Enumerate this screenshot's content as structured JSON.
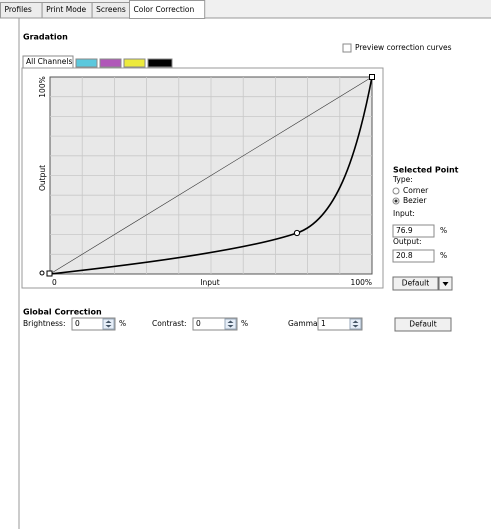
{
  "tabs": [
    "Profiles",
    "Print Mode",
    "Screens",
    "Color Correction"
  ],
  "gradation": {
    "title": "Gradation",
    "preview_label": "Preview correction curves",
    "channel_tab": "All Channels",
    "graph": {
      "y_top": "100%",
      "y_label": "Output",
      "x_zero": "0",
      "x_label": "Input",
      "x_right": "100%"
    },
    "selected_point": {
      "title": "Selected Point",
      "type_label": "Type:",
      "options": [
        "Corner",
        "Bezier"
      ],
      "input_label": "Input:",
      "input_value": "76.9",
      "input_unit": "%",
      "output_label": "Output:",
      "output_value": "20.8",
      "output_unit": "%",
      "default_button": "Default"
    }
  },
  "global_correction": {
    "title": "Global Correction",
    "brightness_label": "Brightness:",
    "brightness_value": "0",
    "brightness_unit": "%",
    "contrast_label": "Contrast:",
    "contrast_value": "0",
    "contrast_unit": "%",
    "gamma_label": "Gamma:",
    "gamma_value": "1",
    "default_button": "Default"
  }
}
